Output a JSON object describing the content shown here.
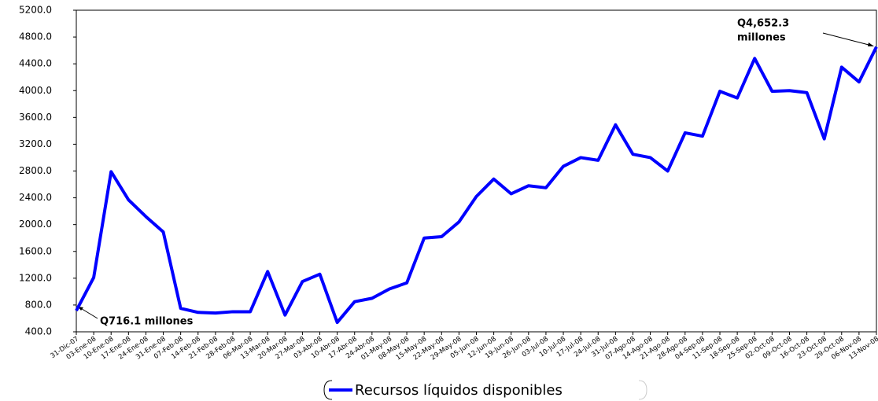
{
  "chart_data": {
    "type": "line",
    "categories": [
      "31-Dic-07",
      "03-Ene-08",
      "10-Ene-08",
      "17-Ene-08",
      "24-Ene-08",
      "31-Ene-08",
      "07-Feb-08",
      "14-Feb-08",
      "21-Feb-08",
      "28-Feb-08",
      "06-Mar-08",
      "13-Mar-08",
      "20-Mar-08",
      "27-Mar-08",
      "03-Abr-08",
      "10-Abr-08",
      "17-Abr-08",
      "24-Abr-08",
      "01-May-08",
      "08-May-08",
      "15-May-08",
      "22-May-08",
      "29-May-08",
      "05-Jun-08",
      "12-Jun-08",
      "19-Jun-08",
      "26-Jun-08",
      "03-Jul-08",
      "10-Jul-08",
      "17-Jul-08",
      "24-Jul-08",
      "31-Jul-08",
      "07-Ago-08",
      "14-Ago-08",
      "21-Ago-08",
      "28-Ago-08",
      "04-Sep-08",
      "11-Sep-08",
      "18-Sep-08",
      "25-Sep-08",
      "02-Oct-08",
      "09-Oct-08",
      "16-Oct-08",
      "23-Oct-08",
      "29-Oct-08",
      "06-Nov-08",
      "13-Nov-08"
    ],
    "series": [
      {
        "name": "Recursos líquidos disponibles",
        "color": "#0000ff",
        "values": [
          716.1,
          1210,
          2790,
          2370,
          2120,
          1890,
          750,
          690,
          680,
          700,
          700,
          1300,
          650,
          1150,
          1260,
          540,
          850,
          900,
          1040,
          1130,
          1800,
          1820,
          2040,
          2420,
          2680,
          2460,
          2580,
          2550,
          2870,
          3000,
          2960,
          3490,
          3050,
          3000,
          2800,
          3370,
          3320,
          3990,
          3890,
          4480,
          3990,
          4000,
          3970,
          3280,
          4350,
          4130,
          4652.3
        ]
      }
    ],
    "ylim": [
      400,
      5200
    ],
    "yticks": [
      {
        "value": 400,
        "label": "400.0"
      },
      {
        "value": 800,
        "label": "800.0"
      },
      {
        "value": 1200,
        "label": "1200.0"
      },
      {
        "value": 1600,
        "label": "1600.0"
      },
      {
        "value": 2000,
        "label": "2000.0"
      },
      {
        "value": 2400,
        "label": "2400.0"
      },
      {
        "value": 2800,
        "label": "2800.0"
      },
      {
        "value": 3200,
        "label": "3200.0"
      },
      {
        "value": 3600,
        "label": "3600.0"
      },
      {
        "value": 4000,
        "label": "4000.0"
      },
      {
        "value": 4400,
        "label": "4400.0"
      },
      {
        "value": 4800,
        "label": "4800.0"
      },
      {
        "value": 5200,
        "label": "5200.0"
      }
    ],
    "annotations": [
      "Q716.1 millones",
      "Q4,652.3",
      "millones"
    ],
    "grid": false
  }
}
